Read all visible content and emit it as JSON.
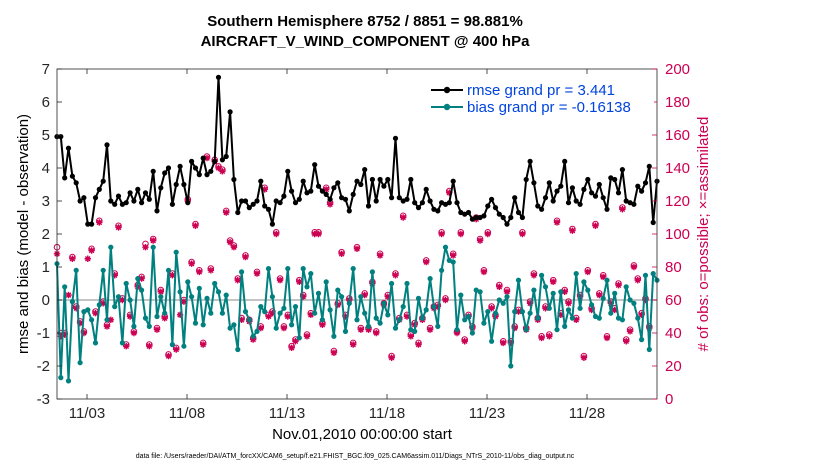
{
  "chart_data": {
    "type": "line",
    "title": "Southern Hemisphere 8752 / 8851 = 98.881%",
    "subtitle": "AIRCRAFT_V_WIND_COMPONENT @ 400 hPa",
    "xlabel": "Nov.01,2010 00:00:00 start",
    "ylabel": "rmse and bias (model - observation)",
    "ylabel_right": "# of obs: o=possible; ×=assimilated",
    "footnote": "data file: /Users/raeder/DAI/ATM_forcXX/CAM6_setup/f.e21.FHIST_BGC.f09_025.CAM6assim.011/Diags_NTrS_2010-11/obs_diag_output.nc",
    "xlim": [
      1.5,
      31.5
    ],
    "ylim": [
      -3,
      7
    ],
    "ylim_right": [
      0,
      200
    ],
    "xticks": [
      3,
      8,
      13,
      18,
      23,
      28
    ],
    "xtick_labels": [
      "11/03",
      "11/08",
      "11/13",
      "11/18",
      "11/23",
      "11/28"
    ],
    "yticks": [
      -3,
      -2,
      -1,
      0,
      1,
      2,
      3,
      4,
      5,
      6,
      7
    ],
    "yticks_right": [
      0,
      20,
      40,
      60,
      80,
      100,
      120,
      140,
      160,
      180,
      200
    ],
    "legend_position": "top-right",
    "colors": {
      "rmse": "#000000",
      "bias": "#00807f",
      "obs": "#cc0052",
      "zero": "#b0b0b0",
      "legend_text": "#0044dd"
    },
    "series": [
      {
        "name": "rmse grand pr = 3.441",
        "axis": "left",
        "values": [
          4.95,
          4.95,
          3.7,
          4.6,
          3.75,
          3.55,
          3.0,
          3.1,
          2.3,
          2.3,
          3.1,
          3.35,
          3.6,
          4.7,
          3.0,
          2.9,
          3.15,
          2.9,
          2.95,
          3.25,
          3.0,
          3.35,
          2.95,
          3.25,
          3.05,
          3.9,
          2.7,
          3.4,
          3.85,
          4.0,
          2.9,
          3.5,
          4.05,
          3.5,
          2.95,
          4.2,
          4.0,
          3.8,
          4.3,
          3.8,
          3.9,
          4.2,
          6.75,
          4.25,
          4.35,
          5.7,
          3.65,
          2.65,
          3.0,
          3.0,
          2.8,
          2.9,
          3.0,
          3.6,
          2.85,
          2.75,
          2.3,
          3.0,
          2.95,
          3.15,
          3.9,
          3.3,
          2.95,
          3.05,
          3.6,
          3.25,
          3.3,
          4.1,
          3.45,
          3.3,
          3.2,
          3.05,
          3.4,
          3.55,
          3.1,
          3.05,
          2.7,
          3.2,
          3.6,
          3.5,
          3.95,
          2.85,
          3.65,
          3.0,
          3.65,
          3.45,
          3.65,
          3.1,
          4.9,
          3.1,
          3.0,
          3.05,
          3.65,
          2.95,
          2.8,
          2.95,
          3.35,
          3.0,
          2.75,
          2.7,
          2.95,
          2.9,
          2.95,
          3.6,
          2.95,
          2.65,
          2.6,
          2.65,
          2.45,
          2.5,
          2.5,
          2.55,
          2.85,
          3.05,
          2.8,
          2.6,
          2.5,
          2.3,
          2.5,
          3.1,
          2.65,
          2.5,
          3.65,
          4.2,
          3.55,
          2.85,
          2.75,
          3.1,
          3.55,
          3.0,
          3.3,
          3.45,
          4.2,
          2.95,
          3.4,
          3.0,
          2.9,
          3.35,
          3.65,
          3.25,
          3.15,
          3.5,
          3.1,
          2.75,
          3.7,
          3.65,
          3.25,
          3.95,
          3.0,
          2.95,
          2.9,
          3.45,
          3.3,
          3.55,
          4.05,
          2.35,
          3.6
        ]
      },
      {
        "name": "bias grand pr = -0.16138",
        "axis": "left",
        "values": [
          1.1,
          -2.35,
          0.4,
          -2.45,
          -0.05,
          0.9,
          -1.9,
          -0.35,
          -0.3,
          -0.6,
          -1.3,
          -0.15,
          0.9,
          -0.6,
          1.6,
          -0.2,
          0.1,
          -1.3,
          0.5,
          0.0,
          -0.8,
          0.65,
          0.3,
          -0.55,
          -0.8,
          1.6,
          -0.5,
          0.1,
          -0.4,
          0.9,
          -1.35,
          1.45,
          0.25,
          -1.4,
          0.55,
          0.1,
          -0.7,
          0.35,
          -0.75,
          0.05,
          -0.4,
          0.5,
          0.25,
          -0.4,
          0.15,
          -0.85,
          -0.75,
          -1.5,
          0.85,
          -0.35,
          -0.6,
          -1.1,
          -0.95,
          -0.2,
          -0.35,
          0.95,
          0.1,
          -0.85,
          -0.4,
          -0.25,
          0.95,
          -0.75,
          -0.2,
          -1.15,
          0.95,
          0.4,
          0.8,
          -0.4,
          0.2,
          -0.6,
          0.55,
          -0.3,
          -1.1,
          0.3,
          0.1,
          -0.95,
          -0.1,
          0.95,
          -0.6,
          0.1,
          -0.4,
          -0.8,
          0.85,
          -0.55,
          -0.7,
          -0.1,
          -0.45,
          0.5,
          -0.85,
          -0.6,
          -0.2,
          0.5,
          -0.9,
          -0.95,
          0.05,
          -0.55,
          -0.3,
          0.65,
          -0.2,
          -0.8,
          0.9,
          1.6,
          1.2,
          1.15,
          -0.9,
          0.15,
          -0.6,
          -0.5,
          -1.0,
          0.3,
          0.25,
          -0.7,
          -0.35,
          -1.25,
          -0.4,
          0.0,
          -0.1,
          0.1,
          -2.0,
          -0.35,
          0.6,
          -0.35,
          -0.9,
          -0.4,
          0.3,
          -0.55,
          0.75,
          0.4,
          -0.25,
          0.2,
          -0.9,
          0.25,
          -0.8,
          -0.3,
          -0.55,
          0.8,
          -0.25,
          0.55,
          0.3,
          -0.15,
          -0.5,
          -0.55,
          0.05,
          0.6,
          -0.4,
          0.2,
          -0.55,
          -0.6,
          0.4,
          0.0,
          -0.1,
          -0.55,
          -1.2,
          0.75,
          -1.5,
          0.8,
          0.6
        ]
      },
      {
        "name": "# of obs assimilated",
        "axis": "right",
        "marker": "asterisk",
        "values": [
          88,
          38,
          39,
          63,
          85,
          55,
          46,
          40,
          85,
          90,
          52,
          107,
          58,
          44,
          48,
          75,
          104,
          60,
          32,
          50,
          40,
          68,
          73,
          92,
          32,
          96,
          42,
          65,
          49,
          26,
          75,
          30,
          51,
          59,
          120,
          82,
          105,
          77,
          33,
          146,
          78,
          144,
          140,
          138,
          113,
          95,
          92,
          72,
          48,
          86,
          47,
          36,
          76,
          43,
          127,
          50,
          52,
          100,
          72,
          43,
          50,
          31,
          35,
          71,
          62,
          38,
          51,
          100,
          100,
          45,
          127,
          118,
          28,
          57,
          88,
          50,
          60,
          33,
          91,
          42,
          63,
          42,
          70,
          40,
          87,
          57,
          62,
          25,
          75,
          48,
          110,
          50,
          38,
          45,
          33,
          48,
          83,
          42,
          55,
          56,
          100,
          60,
          125,
          87,
          40,
          100,
          35,
          50,
          43,
          109,
          96,
          77,
          100,
          55,
          50,
          68,
          34,
          65,
          34,
          43,
          53,
          100,
          42,
          58,
          75,
          48,
          37,
          55,
          38,
          71,
          107,
          51,
          65,
          58,
          102,
          48,
          62,
          25,
          77,
          54,
          105,
          63,
          74,
          37,
          58,
          54,
          69,
          115,
          35,
          41,
          80,
          72,
          51,
          60,
          43
        ]
      },
      {
        "name": "# of obs possible",
        "axis": "right",
        "marker": "circle",
        "values": [
          92,
          40,
          40,
          63,
          86,
          56,
          47,
          41,
          85,
          91,
          53,
          108,
          59,
          45,
          48,
          76,
          105,
          61,
          33,
          51,
          41,
          69,
          74,
          94,
          33,
          97,
          43,
          66,
          50,
          27,
          76,
          31,
          51,
          60,
          121,
          83,
          106,
          78,
          34,
          147,
          79,
          145,
          141,
          139,
          114,
          96,
          93,
          73,
          49,
          87,
          48,
          37,
          77,
          44,
          128,
          51,
          53,
          101,
          73,
          44,
          51,
          32,
          36,
          72,
          63,
          39,
          52,
          101,
          101,
          46,
          128,
          119,
          29,
          58,
          89,
          51,
          61,
          34,
          92,
          43,
          64,
          43,
          71,
          41,
          88,
          58,
          63,
          26,
          76,
          49,
          111,
          51,
          39,
          46,
          34,
          49,
          84,
          43,
          56,
          57,
          101,
          61,
          126,
          88,
          41,
          101,
          36,
          51,
          44,
          110,
          97,
          78,
          101,
          56,
          51,
          69,
          35,
          66,
          35,
          44,
          54,
          101,
          43,
          59,
          76,
          49,
          38,
          56,
          39,
          72,
          108,
          52,
          66,
          59,
          103,
          49,
          63,
          26,
          78,
          55,
          106,
          64,
          75,
          38,
          59,
          55,
          70,
          116,
          36,
          42,
          81,
          73,
          52,
          61,
          44
        ]
      }
    ]
  }
}
